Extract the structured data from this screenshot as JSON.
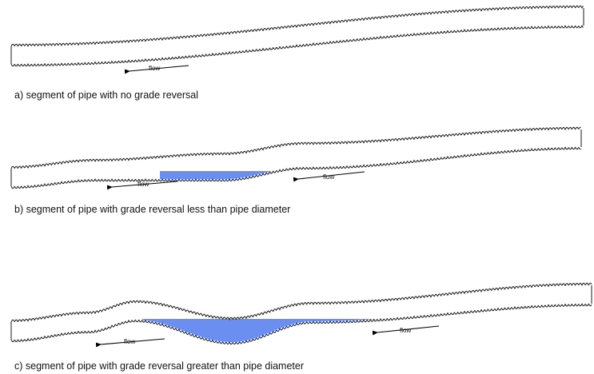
{
  "colors": {
    "water": "#6a8ff0",
    "pipe": "#1a1a1a",
    "text": "#111111"
  },
  "flow_label": "flow",
  "panels": [
    {
      "id": "a",
      "caption": "a) segment of pipe with no grade reversal",
      "water": false
    },
    {
      "id": "b",
      "caption": "b) segment of pipe with grade reversal less than pipe diameter",
      "water": true
    },
    {
      "id": "c",
      "caption": "c) segment of pipe with grade reversal greater than pipe diameter",
      "water": true
    }
  ]
}
